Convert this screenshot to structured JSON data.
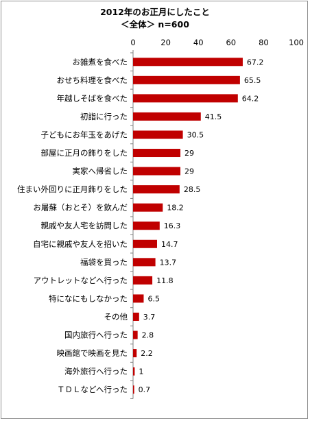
{
  "chart_data": {
    "type": "bar",
    "orientation": "horizontal",
    "title": "2012年のお正月にしたこと",
    "subtitle": "＜全体＞ n=600",
    "xlim": [
      0,
      100
    ],
    "ticks": [
      0,
      20,
      40,
      60,
      80,
      100
    ],
    "grid": false,
    "bar_color": "#c00000",
    "categories": [
      "お雑煮を食べた",
      "おせち料理を食べた",
      "年越しそばを食べた",
      "初詣に行った",
      "子どもにお年玉をあげた",
      "部屋に正月の飾りをした",
      "実家へ帰省した",
      "住まい外回りに正月飾りをした",
      "お屠蘇（おとそ）を飲んだ",
      "親戚や友人宅を訪問した",
      "自宅に親戚や友人を招いた",
      "福袋を買った",
      "アウトレットなどへ行った",
      "特になにもしなかった",
      "その他",
      "国内旅行へ行った",
      "映画館で映画を見た",
      "海外旅行へ行った",
      "ＴＤＬなどへ行った"
    ],
    "values": [
      67.2,
      65.5,
      64.2,
      41.5,
      30.5,
      29,
      29,
      28.5,
      18.2,
      16.3,
      14.7,
      13.7,
      11.8,
      6.5,
      3.7,
      2.8,
      2.2,
      1,
      0.7
    ]
  }
}
